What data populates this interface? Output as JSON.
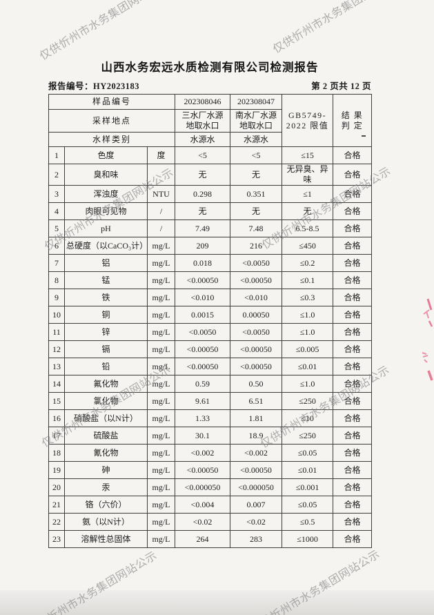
{
  "page": {
    "title": "山西水务宏远水质检测有限公司检测报告",
    "report_no": "报告编号：HY2023183",
    "page_indicator": "第 2 页共 12 页",
    "watermark_text": "仅供忻州市水务集团网站公示"
  },
  "table": {
    "header": {
      "sample_no_label": "样品编号",
      "sample1_no": "202308046",
      "sample2_no": "202308047",
      "site_label": "采样地点",
      "sample1_site": "三水厂水源\n地取水口",
      "sample2_site": "南水厂水源\n地取水口",
      "type_label": "水样类别",
      "sample1_type": "水源水",
      "sample2_type": "水源水",
      "limit_header": "GB5749-\n2022 限值",
      "result_header": "结 果\n判 定"
    },
    "rows": [
      {
        "no": "1",
        "item": "色度",
        "unit": "度",
        "v1": "<5",
        "v2": "<5",
        "limit": "≤15",
        "result": "合格"
      },
      {
        "no": "2",
        "item": "臭和味",
        "unit": "",
        "v1": "无",
        "v2": "无",
        "limit": "无异臭、异味",
        "result": "合格"
      },
      {
        "no": "3",
        "item": "浑浊度",
        "unit": "NTU",
        "v1": "0.298",
        "v2": "0.351",
        "limit": "≤1",
        "result": "合格"
      },
      {
        "no": "4",
        "item": "肉眼可见物",
        "unit": "/",
        "v1": "无",
        "v2": "无",
        "limit": "无",
        "result": "合格"
      },
      {
        "no": "5",
        "item": "pH",
        "unit": "/",
        "v1": "7.49",
        "v2": "7.48",
        "limit": "6.5-8.5",
        "result": "合格"
      },
      {
        "no": "6",
        "item": "总硬度（以CaCO₃计）",
        "unit": "mg/L",
        "v1": "209",
        "v2": "216",
        "limit": "≤450",
        "result": "合格"
      },
      {
        "no": "7",
        "item": "铝",
        "unit": "mg/L",
        "v1": "0.018",
        "v2": "<0.0050",
        "limit": "≤0.2",
        "result": "合格"
      },
      {
        "no": "8",
        "item": "锰",
        "unit": "mg/L",
        "v1": "<0.00050",
        "v2": "<0.00050",
        "limit": "≤0.1",
        "result": "合格"
      },
      {
        "no": "9",
        "item": "铁",
        "unit": "mg/L",
        "v1": "<0.010",
        "v2": "<0.010",
        "limit": "≤0.3",
        "result": "合格"
      },
      {
        "no": "10",
        "item": "铜",
        "unit": "mg/L",
        "v1": "0.0015",
        "v2": "0.00050",
        "limit": "≤1.0",
        "result": "合格"
      },
      {
        "no": "11",
        "item": "锌",
        "unit": "mg/L",
        "v1": "<0.0050",
        "v2": "<0.0050",
        "limit": "≤1.0",
        "result": "合格"
      },
      {
        "no": "12",
        "item": "镉",
        "unit": "mg/L",
        "v1": "<0.00050",
        "v2": "<0.00050",
        "limit": "≤0.005",
        "result": "合格"
      },
      {
        "no": "13",
        "item": "铅",
        "unit": "mg/L",
        "v1": "<0.00050",
        "v2": "<0.00050",
        "limit": "≤0.01",
        "result": "合格"
      },
      {
        "no": "14",
        "item": "氟化物",
        "unit": "mg/L",
        "v1": "0.59",
        "v2": "0.50",
        "limit": "≤1.0",
        "result": "合格"
      },
      {
        "no": "15",
        "item": "氯化物",
        "unit": "mg/L",
        "v1": "9.61",
        "v2": "6.51",
        "limit": "≤250",
        "result": "合格"
      },
      {
        "no": "16",
        "item": "硝酸盐（以N计）",
        "unit": "mg/L",
        "v1": "1.33",
        "v2": "1.81",
        "limit": "≤10",
        "result": "合格"
      },
      {
        "no": "17",
        "item": "硫酸盐",
        "unit": "mg/L",
        "v1": "30.1",
        "v2": "18.9",
        "limit": "≤250",
        "result": "合格"
      },
      {
        "no": "18",
        "item": "氰化物",
        "unit": "mg/L",
        "v1": "<0.002",
        "v2": "<0.002",
        "limit": "≤0.05",
        "result": "合格"
      },
      {
        "no": "19",
        "item": "砷",
        "unit": "mg/L",
        "v1": "<0.00050",
        "v2": "<0.00050",
        "limit": "≤0.01",
        "result": "合格"
      },
      {
        "no": "20",
        "item": "汞",
        "unit": "mg/L",
        "v1": "<0.000050",
        "v2": "<0.000050",
        "limit": "≤0.001",
        "result": "合格"
      },
      {
        "no": "21",
        "item": "铬（六价）",
        "unit": "mg/L",
        "v1": "<0.004",
        "v2": "0.007",
        "limit": "≤0.05",
        "result": "合格"
      },
      {
        "no": "22",
        "item": "氨（以N计）",
        "unit": "mg/L",
        "v1": "<0.02",
        "v2": "<0.02",
        "limit": "≤0.5",
        "result": "合格"
      },
      {
        "no": "23",
        "item": "溶解性总固体",
        "unit": "mg/L",
        "v1": "264",
        "v2": "283",
        "limit": "≤1000",
        "result": "合格"
      }
    ]
  }
}
